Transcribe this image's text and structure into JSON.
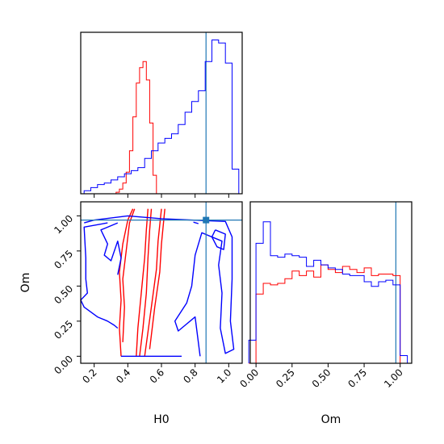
{
  "colors": {
    "series_a": "#ff0000",
    "series_b": "#0000ff",
    "truth": "#1f77b4"
  },
  "chart_data": [
    {
      "type": "histogram",
      "panel": "top-left",
      "xlim": [
        0.12,
        1.08
      ],
      "x_ticks": [
        0.2,
        0.4,
        0.6,
        0.8,
        1.0
      ],
      "y_ticks_shown": false,
      "truth_x": 0.865,
      "series": [
        {
          "color": "red",
          "x": [
            0.34,
            0.36,
            0.38,
            0.4,
            0.42,
            0.44,
            0.46,
            0.48,
            0.5,
            0.52,
            0.54,
            0.56
          ],
          "values": [
            0.01,
            0.03,
            0.07,
            0.14,
            0.28,
            0.5,
            0.72,
            0.82,
            0.86,
            0.74,
            0.46,
            0.12
          ]
        },
        {
          "color": "blue",
          "x": [
            0.16,
            0.2,
            0.24,
            0.28,
            0.32,
            0.36,
            0.4,
            0.44,
            0.48,
            0.52,
            0.56,
            0.6,
            0.64,
            0.68,
            0.72,
            0.76,
            0.8,
            0.84,
            0.88,
            0.92,
            0.96,
            1.0,
            1.04
          ],
          "values": [
            0.02,
            0.04,
            0.06,
            0.07,
            0.09,
            0.11,
            0.13,
            0.15,
            0.17,
            0.23,
            0.28,
            0.33,
            0.36,
            0.39,
            0.45,
            0.53,
            0.6,
            0.67,
            0.86,
            1.0,
            0.98,
            0.85,
            0.16
          ]
        }
      ]
    },
    {
      "type": "contour",
      "panel": "bottom-left",
      "xlabel": "H0",
      "ylabel": "Om",
      "xlim": [
        0.12,
        1.08
      ],
      "ylim": [
        -0.05,
        1.1
      ],
      "x_ticks": [
        0.2,
        0.4,
        0.6,
        0.8,
        1.0
      ],
      "x_tick_labels": [
        "0.2",
        "0.4",
        "0.6",
        "0.8",
        "1.0"
      ],
      "y_ticks": [
        0.0,
        0.25,
        0.5,
        0.75,
        1.0
      ],
      "y_tick_labels": [
        "0.00",
        "0.25",
        "0.50",
        "0.75",
        "1.00"
      ],
      "truth": [
        0.865,
        0.97
      ],
      "contours": [
        {
          "color": "red",
          "points": [
            [
              0.36,
              0.0
            ],
            [
              0.35,
              0.2
            ],
            [
              0.36,
              0.4
            ],
            [
              0.35,
              0.6
            ],
            [
              0.37,
              0.8
            ],
            [
              0.4,
              0.97
            ],
            [
              0.43,
              1.05
            ]
          ]
        },
        {
          "color": "red",
          "points": [
            [
              0.37,
              0.1
            ],
            [
              0.38,
              0.35
            ],
            [
              0.37,
              0.55
            ],
            [
              0.39,
              0.75
            ],
            [
              0.41,
              0.95
            ],
            [
              0.44,
              1.05
            ]
          ]
        },
        {
          "color": "red",
          "points": [
            [
              0.45,
              0.0
            ],
            [
              0.46,
              0.2
            ],
            [
              0.48,
              0.45
            ],
            [
              0.5,
              0.7
            ],
            [
              0.51,
              0.9
            ],
            [
              0.52,
              1.05
            ]
          ]
        },
        {
          "color": "red",
          "points": [
            [
              0.47,
              0.0
            ],
            [
              0.49,
              0.2
            ],
            [
              0.51,
              0.45
            ],
            [
              0.52,
              0.7
            ],
            [
              0.53,
              0.9
            ],
            [
              0.54,
              1.05
            ]
          ]
        },
        {
          "color": "red",
          "points": [
            [
              0.5,
              0.0
            ],
            [
              0.54,
              0.35
            ],
            [
              0.57,
              0.62
            ],
            [
              0.58,
              0.82
            ],
            [
              0.6,
              1.05
            ]
          ]
        },
        {
          "color": "red",
          "points": [
            [
              0.53,
              0.05
            ],
            [
              0.56,
              0.35
            ],
            [
              0.59,
              0.6
            ],
            [
              0.6,
              0.8
            ],
            [
              0.62,
              1.05
            ]
          ]
        },
        {
          "color": "blue",
          "points": [
            [
              0.36,
              0.0
            ],
            [
              0.72,
              0.0
            ]
          ]
        },
        {
          "color": "blue",
          "points": [
            [
              0.14,
              0.95
            ],
            [
              0.2,
              0.97
            ],
            [
              0.4,
              1.0
            ],
            [
              0.6,
              0.98
            ],
            [
              0.78,
              0.97
            ],
            [
              0.98,
              0.96
            ],
            [
              1.02,
              0.85
            ],
            [
              1.02,
              0.55
            ],
            [
              1.01,
              0.25
            ],
            [
              1.03,
              0.05
            ],
            [
              0.98,
              0.02
            ],
            [
              0.95,
              0.2
            ],
            [
              0.96,
              0.45
            ],
            [
              0.94,
              0.65
            ],
            [
              0.96,
              0.82
            ],
            [
              0.84,
              0.88
            ],
            [
              0.8,
              0.72
            ],
            [
              0.78,
              0.5
            ],
            [
              0.75,
              0.38
            ],
            [
              0.68,
              0.25
            ],
            [
              0.7,
              0.18
            ],
            [
              0.74,
              0.22
            ],
            [
              0.8,
              0.28
            ],
            [
              0.83,
              0.0
            ]
          ]
        },
        {
          "color": "blue",
          "points": [
            [
              0.28,
              0.95
            ],
            [
              0.14,
              0.92
            ],
            [
              0.15,
              0.7
            ],
            [
              0.15,
              0.55
            ],
            [
              0.16,
              0.45
            ],
            [
              0.12,
              0.4
            ],
            [
              0.14,
              0.35
            ],
            [
              0.22,
              0.28
            ],
            [
              0.28,
              0.25
            ],
            [
              0.32,
              0.22
            ],
            [
              0.34,
              0.2
            ]
          ]
        },
        {
          "color": "blue",
          "points": [
            [
              0.34,
              0.95
            ],
            [
              0.24,
              0.9
            ],
            [
              0.28,
              0.8
            ],
            [
              0.26,
              0.72
            ],
            [
              0.3,
              0.68
            ],
            [
              0.34,
              0.82
            ],
            [
              0.36,
              0.7
            ],
            [
              0.34,
              0.58
            ]
          ]
        },
        {
          "color": "blue",
          "points": [
            [
              0.92,
              0.9
            ],
            [
              0.98,
              0.87
            ],
            [
              0.97,
              0.76
            ],
            [
              0.93,
              0.78
            ],
            [
              0.9,
              0.85
            ],
            [
              0.92,
              0.9
            ]
          ]
        },
        {
          "color": "blue",
          "points": [
            [
              0.79,
              0.955
            ],
            [
              0.82,
              0.945
            ]
          ]
        }
      ]
    },
    {
      "type": "histogram",
      "panel": "bottom-right",
      "xlabel": "Om",
      "xlim": [
        -0.04,
        1.08
      ],
      "x_ticks": [
        0.0,
        0.25,
        0.5,
        0.75,
        1.0
      ],
      "x_tick_labels": [
        "0.00",
        "0.25",
        "0.50",
        "0.75",
        "1.00"
      ],
      "y_ticks_shown": false,
      "truth_x": 0.97,
      "series": [
        {
          "color": "red",
          "x": [
            -0.025,
            0.025,
            0.075,
            0.125,
            0.175,
            0.225,
            0.275,
            0.325,
            0.375,
            0.425,
            0.475,
            0.525,
            0.575,
            0.625,
            0.675,
            0.725,
            0.775,
            0.825,
            0.875,
            0.925,
            0.975,
            1.025
          ],
          "values": [
            0.0,
            0.45,
            0.52,
            0.51,
            0.52,
            0.55,
            0.6,
            0.57,
            0.6,
            0.56,
            0.64,
            0.61,
            0.59,
            0.63,
            0.61,
            0.59,
            0.62,
            0.57,
            0.58,
            0.58,
            0.57,
            0.0
          ]
        },
        {
          "color": "blue",
          "x": [
            -0.025,
            0.025,
            0.075,
            0.125,
            0.175,
            0.225,
            0.275,
            0.325,
            0.375,
            0.425,
            0.475,
            0.525,
            0.575,
            0.625,
            0.675,
            0.725,
            0.775,
            0.825,
            0.875,
            0.925,
            0.975,
            1.025
          ],
          "values": [
            0.15,
            0.78,
            0.92,
            0.7,
            0.69,
            0.71,
            0.7,
            0.69,
            0.63,
            0.67,
            0.64,
            0.62,
            0.61,
            0.58,
            0.57,
            0.57,
            0.53,
            0.5,
            0.53,
            0.54,
            0.51,
            0.05
          ]
        }
      ]
    }
  ]
}
